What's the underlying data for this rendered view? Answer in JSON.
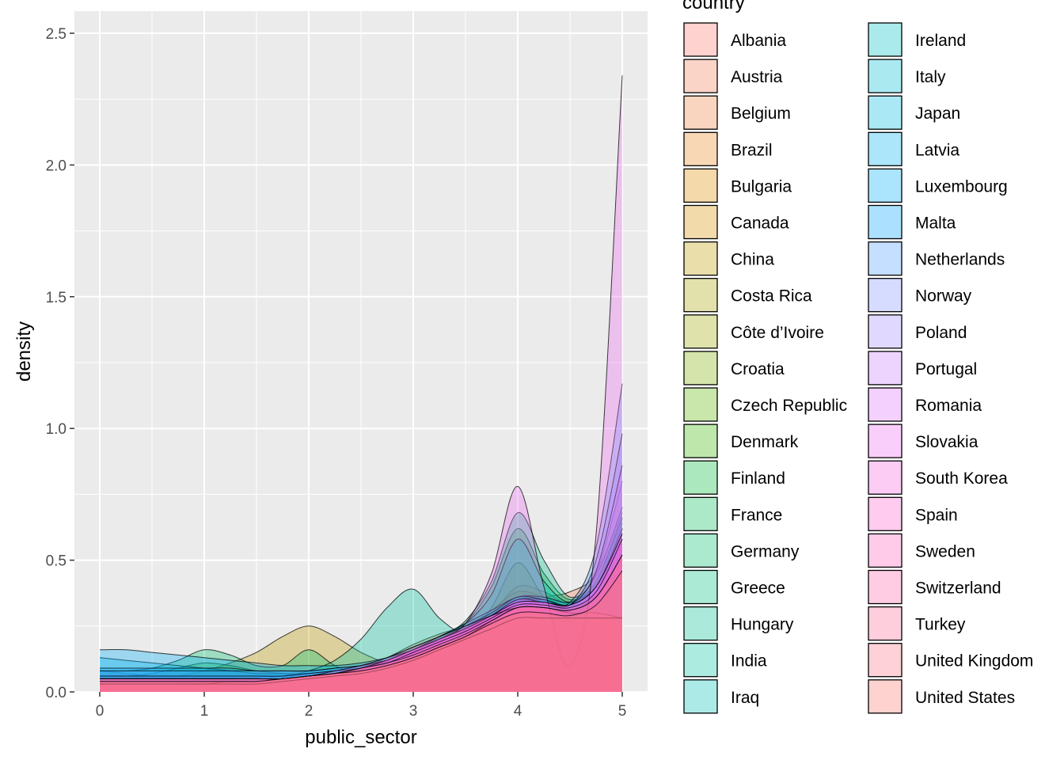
{
  "chart_data": {
    "type": "area",
    "subtype": "overlapping density curves",
    "xlabel": "public_sector",
    "ylabel": "density",
    "xlim": [
      0,
      5
    ],
    "ylim": [
      0,
      2.5
    ],
    "x_ticks": [
      "0",
      "1",
      "2",
      "3",
      "4",
      "5"
    ],
    "y_ticks": [
      "0.0",
      "0.5",
      "1.0",
      "1.5",
      "2.0",
      "2.5"
    ],
    "grid": true,
    "panel_background": "#EBEBEB",
    "fill_opacity": 0.33,
    "outline_color": "#000000",
    "legend": {
      "title": "country",
      "position": "right",
      "columns": 2
    },
    "x": [
      0,
      0.25,
      0.5,
      0.75,
      1,
      1.25,
      1.5,
      1.75,
      2,
      2.25,
      2.5,
      2.75,
      3,
      3.25,
      3.5,
      3.75,
      4,
      4.25,
      4.5,
      4.75,
      5
    ],
    "series": [
      {
        "name": "Albania",
        "color": "#F8766D",
        "values": [
          0.08,
          0.07,
          0.06,
          0.05,
          0.04,
          0.04,
          0.04,
          0.04,
          0.05,
          0.06,
          0.07,
          0.09,
          0.12,
          0.15,
          0.19,
          0.23,
          0.28,
          0.3,
          0.31,
          0.33,
          0.48
        ]
      },
      {
        "name": "Austria",
        "color": "#F37B59",
        "values": [
          0.06,
          0.06,
          0.05,
          0.05,
          0.05,
          0.05,
          0.05,
          0.05,
          0.06,
          0.07,
          0.08,
          0.1,
          0.14,
          0.18,
          0.22,
          0.28,
          0.34,
          0.36,
          0.38,
          0.45,
          0.7
        ]
      },
      {
        "name": "Belgium",
        "color": "#ED8141",
        "values": [
          0.05,
          0.05,
          0.04,
          0.04,
          0.04,
          0.04,
          0.04,
          0.05,
          0.06,
          0.07,
          0.09,
          0.13,
          0.18,
          0.22,
          0.25,
          0.3,
          0.4,
          0.38,
          0.34,
          0.45,
          0.8
        ]
      },
      {
        "name": "Brazil",
        "color": "#E7861B",
        "values": [
          0.04,
          0.04,
          0.04,
          0.04,
          0.04,
          0.04,
          0.04,
          0.05,
          0.06,
          0.07,
          0.09,
          0.12,
          0.16,
          0.2,
          0.24,
          0.3,
          0.36,
          0.35,
          0.32,
          0.4,
          0.62
        ]
      },
      {
        "name": "Bulgaria",
        "color": "#DF8C00",
        "values": [
          0.05,
          0.04,
          0.04,
          0.04,
          0.04,
          0.04,
          0.04,
          0.04,
          0.05,
          0.06,
          0.08,
          0.11,
          0.15,
          0.19,
          0.24,
          0.31,
          0.38,
          0.36,
          0.33,
          0.42,
          0.66
        ]
      },
      {
        "name": "Canada",
        "color": "#D89000",
        "values": [
          0.03,
          0.03,
          0.03,
          0.03,
          0.04,
          0.04,
          0.05,
          0.06,
          0.07,
          0.08,
          0.1,
          0.12,
          0.15,
          0.19,
          0.23,
          0.28,
          0.34,
          0.33,
          0.31,
          0.38,
          0.58
        ]
      },
      {
        "name": "China",
        "color": "#C09B00",
        "values": [
          0.03,
          0.03,
          0.04,
          0.06,
          0.08,
          0.11,
          0.15,
          0.21,
          0.25,
          0.21,
          0.15,
          0.11,
          0.1,
          0.13,
          0.2,
          0.32,
          0.49,
          0.36,
          0.3,
          0.36,
          0.52
        ]
      },
      {
        "name": "Costa Rica",
        "color": "#A8A400",
        "values": [
          0.04,
          0.04,
          0.04,
          0.04,
          0.04,
          0.04,
          0.04,
          0.05,
          0.06,
          0.07,
          0.09,
          0.12,
          0.16,
          0.21,
          0.25,
          0.3,
          0.35,
          0.34,
          0.32,
          0.38,
          0.55
        ]
      },
      {
        "name": "Côte d’Ivoire",
        "color": "#9DA700",
        "values": [
          0.05,
          0.05,
          0.05,
          0.05,
          0.05,
          0.05,
          0.05,
          0.05,
          0.05,
          0.06,
          0.07,
          0.09,
          0.12,
          0.16,
          0.2,
          0.25,
          0.3,
          0.3,
          0.29,
          0.3,
          0.28
        ]
      },
      {
        "name": "Croatia",
        "color": "#7CAE00",
        "values": [
          0.06,
          0.06,
          0.05,
          0.05,
          0.05,
          0.05,
          0.05,
          0.05,
          0.06,
          0.07,
          0.08,
          0.11,
          0.15,
          0.19,
          0.23,
          0.28,
          0.33,
          0.33,
          0.32,
          0.38,
          0.56
        ]
      },
      {
        "name": "Czech Republic",
        "color": "#5BB300",
        "values": [
          0.05,
          0.05,
          0.05,
          0.05,
          0.05,
          0.05,
          0.05,
          0.05,
          0.06,
          0.07,
          0.09,
          0.12,
          0.16,
          0.2,
          0.24,
          0.29,
          0.35,
          0.34,
          0.32,
          0.4,
          0.6
        ]
      },
      {
        "name": "Denmark",
        "color": "#39B600",
        "values": [
          0.06,
          0.06,
          0.07,
          0.09,
          0.11,
          0.1,
          0.08,
          0.07,
          0.06,
          0.06,
          0.07,
          0.1,
          0.14,
          0.18,
          0.23,
          0.29,
          0.35,
          0.34,
          0.33,
          0.41,
          0.64
        ]
      },
      {
        "name": "Finland",
        "color": "#00BA38",
        "values": [
          0.04,
          0.04,
          0.04,
          0.05,
          0.05,
          0.05,
          0.05,
          0.05,
          0.06,
          0.07,
          0.09,
          0.12,
          0.16,
          0.2,
          0.26,
          0.4,
          0.62,
          0.45,
          0.35,
          0.42,
          0.68
        ]
      },
      {
        "name": "France",
        "color": "#00BC59",
        "values": [
          0.06,
          0.06,
          0.06,
          0.06,
          0.06,
          0.06,
          0.06,
          0.06,
          0.07,
          0.08,
          0.09,
          0.11,
          0.14,
          0.18,
          0.23,
          0.29,
          0.36,
          0.35,
          0.33,
          0.42,
          0.66
        ]
      },
      {
        "name": "Germany",
        "color": "#00BE6C",
        "values": [
          0.08,
          0.08,
          0.09,
          0.12,
          0.16,
          0.14,
          0.1,
          0.1,
          0.16,
          0.1,
          0.07,
          0.1,
          0.16,
          0.2,
          0.24,
          0.3,
          0.36,
          0.35,
          0.33,
          0.4,
          0.62
        ]
      },
      {
        "name": "Greece",
        "color": "#00BF7D",
        "values": [
          0.05,
          0.05,
          0.05,
          0.05,
          0.05,
          0.05,
          0.05,
          0.05,
          0.06,
          0.07,
          0.09,
          0.11,
          0.14,
          0.18,
          0.22,
          0.27,
          0.32,
          0.32,
          0.31,
          0.36,
          0.52
        ]
      },
      {
        "name": "Hungary",
        "color": "#00C08E",
        "values": [
          0.04,
          0.04,
          0.04,
          0.04,
          0.04,
          0.04,
          0.04,
          0.05,
          0.06,
          0.07,
          0.09,
          0.12,
          0.16,
          0.21,
          0.27,
          0.42,
          0.68,
          0.5,
          0.36,
          0.44,
          0.7
        ]
      },
      {
        "name": "India",
        "color": "#00C1A0",
        "values": [
          0.04,
          0.04,
          0.04,
          0.04,
          0.04,
          0.04,
          0.05,
          0.06,
          0.08,
          0.12,
          0.2,
          0.32,
          0.39,
          0.28,
          0.22,
          0.26,
          0.32,
          0.31,
          0.29,
          0.33,
          0.45
        ]
      },
      {
        "name": "Iraq",
        "color": "#00C0B2",
        "values": [
          0.05,
          0.05,
          0.05,
          0.05,
          0.05,
          0.05,
          0.05,
          0.05,
          0.06,
          0.07,
          0.08,
          0.1,
          0.13,
          0.17,
          0.21,
          0.26,
          0.31,
          0.31,
          0.3,
          0.34,
          0.48
        ]
      },
      {
        "name": "Ireland",
        "color": "#00BFC4",
        "values": [
          0.05,
          0.05,
          0.05,
          0.05,
          0.05,
          0.05,
          0.05,
          0.05,
          0.06,
          0.07,
          0.09,
          0.12,
          0.16,
          0.21,
          0.26,
          0.37,
          0.58,
          0.42,
          0.34,
          0.42,
          0.66
        ]
      },
      {
        "name": "Italy",
        "color": "#00BCD6",
        "values": [
          0.06,
          0.06,
          0.06,
          0.06,
          0.06,
          0.06,
          0.06,
          0.06,
          0.07,
          0.08,
          0.09,
          0.12,
          0.15,
          0.19,
          0.23,
          0.28,
          0.34,
          0.34,
          0.32,
          0.38,
          0.58
        ]
      },
      {
        "name": "Japan",
        "color": "#00B9E3",
        "values": [
          0.13,
          0.12,
          0.11,
          0.1,
          0.09,
          0.08,
          0.07,
          0.07,
          0.07,
          0.08,
          0.1,
          0.13,
          0.17,
          0.21,
          0.26,
          0.31,
          0.36,
          0.36,
          0.34,
          0.4,
          0.58
        ]
      },
      {
        "name": "Latvia",
        "color": "#00B4EF",
        "values": [
          0.05,
          0.05,
          0.05,
          0.05,
          0.05,
          0.05,
          0.05,
          0.05,
          0.06,
          0.07,
          0.09,
          0.12,
          0.16,
          0.2,
          0.25,
          0.3,
          0.36,
          0.35,
          0.33,
          0.4,
          0.62
        ]
      },
      {
        "name": "Luxembourg",
        "color": "#00ADFA",
        "values": [
          0.16,
          0.16,
          0.15,
          0.14,
          0.13,
          0.12,
          0.11,
          0.1,
          0.1,
          0.1,
          0.11,
          0.13,
          0.16,
          0.2,
          0.24,
          0.28,
          0.34,
          0.33,
          0.31,
          0.36,
          0.5
        ]
      },
      {
        "name": "Malta",
        "color": "#00A5FF",
        "values": [
          0.09,
          0.09,
          0.09,
          0.09,
          0.09,
          0.09,
          0.08,
          0.08,
          0.08,
          0.09,
          0.1,
          0.12,
          0.15,
          0.19,
          0.23,
          0.28,
          0.33,
          0.33,
          0.31,
          0.37,
          0.54
        ]
      },
      {
        "name": "Netherlands",
        "color": "#4B9FFF",
        "values": [
          0.08,
          0.08,
          0.08,
          0.08,
          0.08,
          0.08,
          0.08,
          0.08,
          0.08,
          0.09,
          0.1,
          0.12,
          0.15,
          0.19,
          0.23,
          0.29,
          0.35,
          0.35,
          0.34,
          0.55,
          1.17
        ]
      },
      {
        "name": "Norway",
        "color": "#7F96FF",
        "values": [
          0.06,
          0.06,
          0.06,
          0.06,
          0.06,
          0.06,
          0.06,
          0.06,
          0.07,
          0.08,
          0.09,
          0.12,
          0.15,
          0.19,
          0.23,
          0.28,
          0.34,
          0.34,
          0.33,
          0.5,
          0.98
        ]
      },
      {
        "name": "Poland",
        "color": "#A58AFF",
        "values": [
          0.05,
          0.05,
          0.05,
          0.05,
          0.05,
          0.05,
          0.05,
          0.05,
          0.06,
          0.07,
          0.09,
          0.12,
          0.16,
          0.2,
          0.24,
          0.29,
          0.35,
          0.34,
          0.33,
          0.4,
          0.62
        ]
      },
      {
        "name": "Portugal",
        "color": "#C77CFF",
        "values": [
          0.05,
          0.05,
          0.05,
          0.05,
          0.05,
          0.05,
          0.05,
          0.05,
          0.06,
          0.07,
          0.09,
          0.12,
          0.16,
          0.2,
          0.24,
          0.29,
          0.34,
          0.34,
          0.33,
          0.46,
          0.86
        ]
      },
      {
        "name": "Romania",
        "color": "#DC71FA",
        "values": [
          0.05,
          0.05,
          0.05,
          0.05,
          0.05,
          0.05,
          0.05,
          0.05,
          0.06,
          0.07,
          0.09,
          0.12,
          0.16,
          0.2,
          0.24,
          0.29,
          0.35,
          0.34,
          0.33,
          0.4,
          0.6
        ]
      },
      {
        "name": "Slovakia",
        "color": "#EC69EF",
        "values": [
          0.04,
          0.04,
          0.04,
          0.04,
          0.04,
          0.04,
          0.04,
          0.05,
          0.06,
          0.07,
          0.09,
          0.12,
          0.16,
          0.2,
          0.26,
          0.45,
          0.78,
          0.4,
          0.1,
          0.6,
          2.34
        ]
      },
      {
        "name": "South Korea",
        "color": "#F763E0",
        "values": [
          0.05,
          0.05,
          0.05,
          0.05,
          0.05,
          0.05,
          0.05,
          0.05,
          0.06,
          0.07,
          0.09,
          0.12,
          0.16,
          0.2,
          0.24,
          0.29,
          0.34,
          0.34,
          0.33,
          0.4,
          0.6
        ]
      },
      {
        "name": "Spain",
        "color": "#FF61CC",
        "values": [
          0.03,
          0.03,
          0.03,
          0.03,
          0.03,
          0.04,
          0.04,
          0.05,
          0.06,
          0.08,
          0.1,
          0.13,
          0.17,
          0.21,
          0.25,
          0.29,
          0.32,
          0.32,
          0.3,
          0.3,
          0.28
        ]
      },
      {
        "name": "Sweden",
        "color": "#FF62BC",
        "values": [
          0.04,
          0.04,
          0.04,
          0.04,
          0.04,
          0.04,
          0.04,
          0.05,
          0.06,
          0.07,
          0.09,
          0.11,
          0.15,
          0.19,
          0.23,
          0.28,
          0.33,
          0.33,
          0.32,
          0.38,
          0.58
        ]
      },
      {
        "name": "Switzerland",
        "color": "#FF65AA",
        "values": [
          0.05,
          0.05,
          0.05,
          0.05,
          0.05,
          0.05,
          0.05,
          0.05,
          0.06,
          0.07,
          0.08,
          0.1,
          0.13,
          0.17,
          0.21,
          0.27,
          0.32,
          0.32,
          0.31,
          0.36,
          0.52
        ]
      },
      {
        "name": "Turkey",
        "color": "#FF6A98",
        "values": [
          0.03,
          0.03,
          0.03,
          0.03,
          0.03,
          0.03,
          0.03,
          0.04,
          0.05,
          0.06,
          0.07,
          0.09,
          0.12,
          0.16,
          0.2,
          0.24,
          0.28,
          0.28,
          0.28,
          0.28,
          0.28
        ]
      },
      {
        "name": "United Kingdom",
        "color": "#FD6F86",
        "values": [
          0.05,
          0.05,
          0.05,
          0.05,
          0.05,
          0.05,
          0.05,
          0.05,
          0.06,
          0.07,
          0.09,
          0.11,
          0.14,
          0.18,
          0.22,
          0.27,
          0.32,
          0.32,
          0.31,
          0.36,
          0.52
        ]
      },
      {
        "name": "United States",
        "color": "#F8766D",
        "values": [
          0.04,
          0.04,
          0.04,
          0.04,
          0.04,
          0.04,
          0.04,
          0.05,
          0.06,
          0.07,
          0.08,
          0.1,
          0.13,
          0.17,
          0.21,
          0.26,
          0.3,
          0.3,
          0.29,
          0.33,
          0.46
        ]
      }
    ]
  }
}
